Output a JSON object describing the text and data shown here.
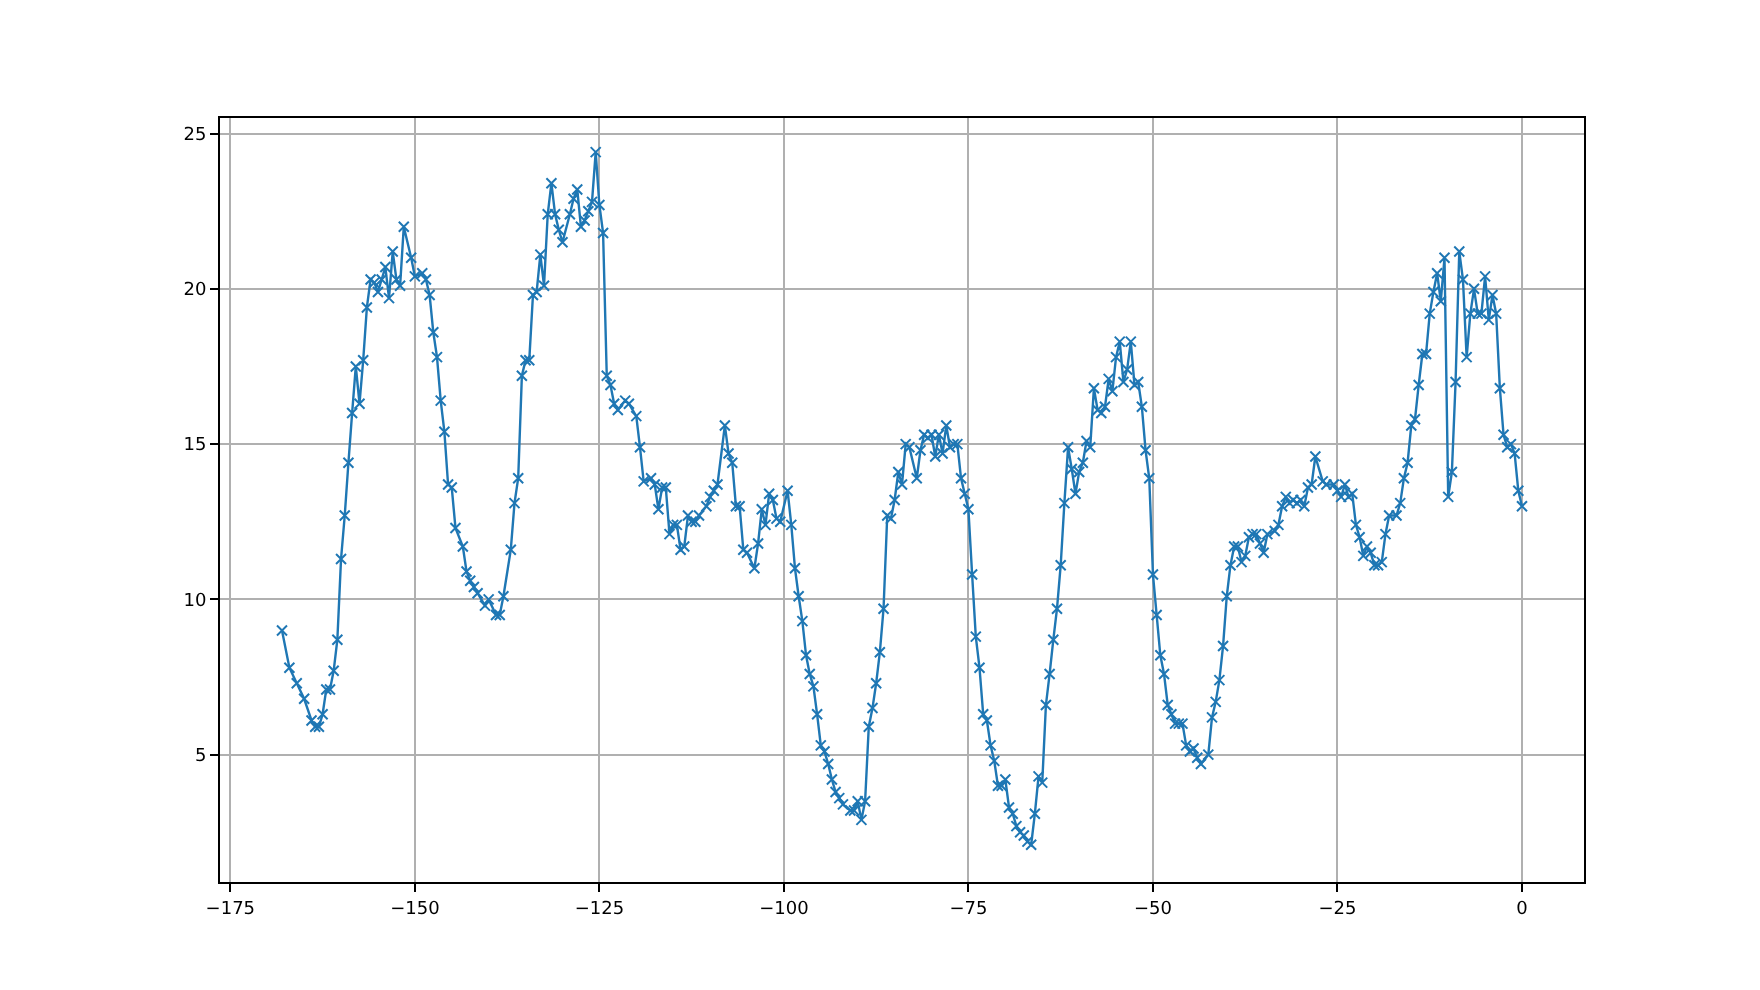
{
  "chart_data": {
    "type": "line",
    "marker": "cross",
    "line_style": "solid",
    "grid": true,
    "xlim": [
      -176.4,
      8.4
    ],
    "xticks": [
      {
        "value": -175,
        "label": "−175"
      },
      {
        "value": -150,
        "label": "−150"
      },
      {
        "value": -125,
        "label": "−125"
      },
      {
        "value": -100,
        "label": "−100"
      },
      {
        "value": -75,
        "label": "−75"
      },
      {
        "value": -50,
        "label": "−50"
      },
      {
        "value": -25,
        "label": "−25"
      },
      0
    ],
    "ylim": [
      0.9,
      25.5
    ],
    "yticks": [
      5,
      10,
      15,
      20,
      25
    ],
    "series": [
      {
        "color": "#1f77b4",
        "x": [
          -168,
          -167,
          -166,
          -165,
          -164,
          -163.5,
          -163,
          -162.5,
          -162,
          -161.5,
          -161,
          -160.5,
          -160,
          -159.5,
          -159,
          -158.5,
          -158,
          -157.5,
          -157,
          -156.5,
          -156,
          -155.5,
          -155,
          -154.5,
          -154,
          -153.5,
          -153,
          -152.5,
          -152,
          -151.5,
          -150.5,
          -150,
          -149,
          -148.5,
          -148,
          -147.5,
          -147,
          -146.5,
          -146,
          -145.5,
          -145,
          -144.5,
          -143.5,
          -143,
          -142.5,
          -142,
          -141.5,
          -140.5,
          -140,
          -139,
          -138.5,
          -138,
          -137,
          -136.5,
          -136,
          -135.5,
          -135,
          -134.5,
          -134,
          -133.5,
          -133,
          -132.5,
          -132,
          -131.5,
          -131,
          -130.5,
          -130,
          -129,
          -128.5,
          -128,
          -127.5,
          -127,
          -126.5,
          -126,
          -125.5,
          -125,
          -124.5,
          -124,
          -123.5,
          -123,
          -122.5,
          -121.5,
          -121,
          -120,
          -119.5,
          -119,
          -118,
          -117.5,
          -117,
          -116.5,
          -116,
          -115.5,
          -115,
          -114.5,
          -114,
          -113.5,
          -113,
          -112.5,
          -112,
          -111.5,
          -110.5,
          -110,
          -109.5,
          -109,
          -108,
          -107.5,
          -107,
          -106.5,
          -106,
          -105.5,
          -105,
          -104,
          -103.5,
          -103,
          -102.5,
          -102,
          -101.5,
          -101,
          -100.5,
          -99.5,
          -99,
          -98.5,
          -98,
          -97.5,
          -97,
          -96.5,
          -96,
          -95.5,
          -95,
          -94.5,
          -94,
          -93.5,
          -93,
          -92.5,
          -92,
          -91,
          -90.5,
          -90,
          -89.5,
          -89,
          -88.5,
          -88,
          -87.5,
          -87,
          -86.5,
          -86,
          -85.5,
          -85,
          -84.5,
          -84,
          -83.5,
          -83,
          -82,
          -81.5,
          -81,
          -80.5,
          -80,
          -79.5,
          -79,
          -78.5,
          -78,
          -77.5,
          -77,
          -76.5,
          -76,
          -75.5,
          -75,
          -74.5,
          -74,
          -73.5,
          -73,
          -72.5,
          -72,
          -71.5,
          -71,
          -70.5,
          -70,
          -69.5,
          -69,
          -68.5,
          -68,
          -67.5,
          -67,
          -66.5,
          -66,
          -65.5,
          -65,
          -64.5,
          -64,
          -63.5,
          -63,
          -62.5,
          -62,
          -61.5,
          -61,
          -60.5,
          -60,
          -59.5,
          -59,
          -58.5,
          -58,
          -57.5,
          -57,
          -56.5,
          -56,
          -55.5,
          -55,
          -54.5,
          -54,
          -53.5,
          -53,
          -52.5,
          -52,
          -51.5,
          -51,
          -50.5,
          -50,
          -49.5,
          -49,
          -48.5,
          -48,
          -47.5,
          -47,
          -46.5,
          -46,
          -45.5,
          -45,
          -44.5,
          -44,
          -43.5,
          -42.5,
          -42,
          -41.5,
          -41,
          -40.5,
          -40,
          -39.5,
          -39,
          -38.5,
          -38,
          -37.5,
          -37,
          -36.5,
          -36,
          -35.5,
          -35,
          -34.5,
          -33.5,
          -33,
          -32.5,
          -32,
          -31.5,
          -31,
          -30.5,
          -30,
          -29.5,
          -29,
          -28.5,
          -28,
          -27,
          -26.5,
          -25.5,
          -25,
          -24.5,
          -24,
          -23.5,
          -23,
          -22.5,
          -22,
          -21.5,
          -21,
          -20.5,
          -20,
          -19.5,
          -19,
          -18.5,
          -18,
          -17,
          -16.5,
          -16,
          -15.5,
          -15,
          -14.5,
          -14,
          -13.5,
          -13,
          -12.5,
          -12,
          -11.5,
          -11,
          -10.5,
          -10,
          -9.5,
          -9,
          -8.5,
          -8,
          -7.5,
          -7,
          -6.5,
          -6,
          -5.5,
          -5,
          -4.5,
          -4,
          -3.5,
          -3,
          -2.5,
          -2,
          -1.5,
          -1,
          -0.5,
          0
        ],
        "values": [
          9.0,
          7.8,
          7.3,
          6.8,
          6.1,
          5.9,
          5.9,
          6.3,
          7.1,
          7.1,
          7.7,
          8.7,
          11.3,
          12.7,
          14.4,
          16.0,
          17.5,
          16.3,
          17.7,
          19.4,
          20.3,
          20.2,
          19.9,
          20.3,
          20.7,
          19.7,
          21.2,
          20.3,
          20.1,
          22.0,
          21.0,
          20.4,
          20.5,
          20.3,
          19.8,
          18.6,
          17.8,
          16.4,
          15.4,
          13.7,
          13.6,
          12.3,
          11.7,
          10.9,
          10.6,
          10.4,
          10.2,
          9.8,
          10.0,
          9.5,
          9.5,
          10.1,
          11.6,
          13.1,
          13.9,
          17.2,
          17.7,
          17.7,
          19.8,
          19.9,
          21.1,
          20.1,
          22.4,
          23.4,
          22.4,
          21.9,
          21.5,
          22.4,
          22.9,
          23.2,
          22.0,
          22.2,
          22.5,
          22.8,
          24.4,
          22.7,
          21.8,
          17.2,
          16.9,
          16.3,
          16.1,
          16.4,
          16.3,
          15.9,
          14.9,
          13.8,
          13.9,
          13.7,
          12.9,
          13.6,
          13.6,
          12.1,
          12.4,
          12.4,
          11.6,
          11.7,
          12.7,
          12.5,
          12.5,
          12.7,
          13.0,
          13.3,
          13.5,
          13.7,
          15.6,
          14.7,
          14.4,
          13.0,
          13.0,
          11.6,
          11.5,
          11.0,
          11.8,
          12.9,
          12.4,
          13.4,
          13.2,
          12.6,
          12.5,
          13.5,
          12.4,
          11.0,
          10.1,
          9.3,
          8.2,
          7.6,
          7.2,
          6.3,
          5.3,
          5.1,
          4.7,
          4.2,
          3.8,
          3.6,
          3.4,
          3.2,
          3.2,
          3.5,
          2.9,
          3.5,
          5.9,
          6.5,
          7.3,
          8.3,
          9.7,
          12.7,
          12.6,
          13.2,
          14.1,
          13.7,
          15.0,
          14.9,
          13.9,
          14.8,
          15.3,
          15.2,
          15.3,
          14.6,
          15.3,
          14.7,
          15.6,
          14.9,
          15.0,
          15.0,
          13.9,
          13.4,
          12.9,
          10.8,
          8.8,
          7.8,
          6.3,
          6.1,
          5.3,
          4.8,
          4.0,
          4.0,
          4.2,
          3.3,
          3.1,
          2.7,
          2.5,
          2.4,
          2.2,
          2.1,
          3.1,
          4.3,
          4.1,
          6.6,
          7.6,
          8.7,
          9.7,
          11.1,
          13.1,
          14.9,
          14.2,
          13.4,
          14.1,
          14.4,
          15.1,
          14.9,
          16.8,
          16.1,
          16.0,
          16.2,
          17.1,
          16.7,
          17.8,
          18.3,
          17.0,
          17.4,
          18.3,
          16.9,
          17.0,
          16.2,
          14.8,
          13.9,
          10.8,
          9.5,
          8.2,
          7.6,
          6.6,
          6.3,
          6.0,
          6.0,
          6.0,
          5.3,
          5.1,
          5.2,
          4.9,
          4.7,
          5.0,
          6.2,
          6.7,
          7.4,
          8.5,
          10.1,
          11.1,
          11.7,
          11.7,
          11.2,
          11.4,
          12.0,
          12.1,
          12.1,
          11.8,
          11.5,
          12.1,
          12.2,
          12.4,
          13.0,
          13.3,
          13.1,
          13.2,
          13.1,
          13.2,
          13.0,
          13.6,
          13.7,
          14.6,
          13.8,
          13.7,
          13.7,
          13.5,
          13.3,
          13.7,
          13.3,
          13.4,
          12.4,
          12.0,
          11.4,
          11.7,
          11.5,
          11.1,
          11.1,
          11.2,
          12.1,
          12.7,
          12.7,
          13.1,
          13.9,
          14.4,
          15.6,
          15.8,
          16.9,
          17.9,
          17.9,
          19.2,
          19.9,
          20.5,
          19.6,
          21.0,
          13.3,
          14.1,
          17.0,
          21.2,
          20.3,
          17.8,
          19.2,
          20.0,
          19.2,
          19.2,
          20.4,
          19.0,
          19.8,
          19.2,
          16.8,
          15.3,
          14.9,
          15.0,
          14.7,
          13.5,
          13.0
        ]
      }
    ]
  }
}
